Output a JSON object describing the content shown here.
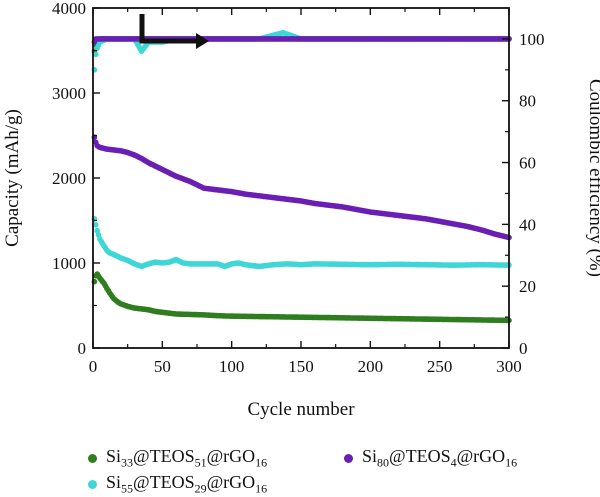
{
  "chart_data": {
    "type": "scatter",
    "xlabel": "Cycle number",
    "ylabel_left": "Capacity (mAh/g)",
    "ylabel_right": "Coulombic efficiency (%)",
    "xlim": [
      0,
      300
    ],
    "ylim_left": [
      0,
      4000
    ],
    "ylim_right": [
      0,
      110
    ],
    "x_ticks": [
      "0",
      "50",
      "100",
      "150",
      "200",
      "250",
      "300"
    ],
    "y_left_ticks": [
      "0",
      "1000",
      "2000",
      "3000",
      "4000"
    ],
    "y_right_ticks": [
      "0",
      "20",
      "40",
      "60",
      "80",
      "100"
    ],
    "grid": false,
    "legend_position": "bottom",
    "series": [
      {
        "name": "Si33@TEOS51@rGO16",
        "color": "#2e7d1e",
        "capacity": [
          [
            1,
            780
          ],
          [
            2,
            850
          ],
          [
            3,
            870
          ],
          [
            5,
            820
          ],
          [
            8,
            760
          ],
          [
            10,
            700
          ],
          [
            12,
            650
          ],
          [
            15,
            580
          ],
          [
            18,
            540
          ],
          [
            20,
            520
          ],
          [
            25,
            490
          ],
          [
            30,
            470
          ],
          [
            35,
            460
          ],
          [
            40,
            450
          ],
          [
            45,
            430
          ],
          [
            50,
            420
          ],
          [
            55,
            410
          ],
          [
            60,
            400
          ],
          [
            70,
            395
          ],
          [
            80,
            390
          ],
          [
            90,
            380
          ],
          [
            100,
            375
          ],
          [
            120,
            370
          ],
          [
            140,
            365
          ],
          [
            160,
            360
          ],
          [
            180,
            355
          ],
          [
            200,
            350
          ],
          [
            220,
            345
          ],
          [
            240,
            340
          ],
          [
            260,
            335
          ],
          [
            280,
            330
          ],
          [
            300,
            325
          ]
        ],
        "efficiency": [
          [
            1,
            96
          ],
          [
            2,
            98
          ],
          [
            3,
            99
          ],
          [
            5,
            100
          ],
          [
            10,
            100
          ],
          [
            20,
            100
          ],
          [
            40,
            100
          ],
          [
            60,
            100
          ],
          [
            80,
            100
          ],
          [
            100,
            100
          ],
          [
            150,
            100
          ],
          [
            200,
            100
          ],
          [
            250,
            100
          ],
          [
            300,
            100
          ]
        ]
      },
      {
        "name": "Si55@TEOS29@rGO16",
        "color": "#3fd6d6",
        "capacity": [
          [
            1,
            1520
          ],
          [
            2,
            1450
          ],
          [
            3,
            1380
          ],
          [
            5,
            1280
          ],
          [
            8,
            1200
          ],
          [
            10,
            1150
          ],
          [
            12,
            1120
          ],
          [
            15,
            1100
          ],
          [
            20,
            1060
          ],
          [
            25,
            1030
          ],
          [
            30,
            990
          ],
          [
            35,
            960
          ],
          [
            40,
            990
          ],
          [
            45,
            1010
          ],
          [
            50,
            1000
          ],
          [
            55,
            1010
          ],
          [
            60,
            1040
          ],
          [
            65,
            1000
          ],
          [
            70,
            990
          ],
          [
            80,
            990
          ],
          [
            90,
            990
          ],
          [
            95,
            960
          ],
          [
            100,
            990
          ],
          [
            105,
            1000
          ],
          [
            110,
            980
          ],
          [
            120,
            960
          ],
          [
            130,
            980
          ],
          [
            140,
            990
          ],
          [
            150,
            980
          ],
          [
            160,
            990
          ],
          [
            180,
            985
          ],
          [
            200,
            980
          ],
          [
            220,
            985
          ],
          [
            240,
            980
          ],
          [
            260,
            975
          ],
          [
            280,
            980
          ],
          [
            300,
            975
          ]
        ],
        "efficiency": [
          [
            1,
            90
          ],
          [
            2,
            95
          ],
          [
            3,
            97
          ],
          [
            5,
            99
          ],
          [
            10,
            100
          ],
          [
            20,
            100
          ],
          [
            30,
            100
          ],
          [
            35,
            96
          ],
          [
            40,
            99
          ],
          [
            50,
            99
          ],
          [
            60,
            100
          ],
          [
            80,
            100
          ],
          [
            100,
            100
          ],
          [
            120,
            100
          ],
          [
            137,
            102
          ],
          [
            150,
            100
          ],
          [
            200,
            100
          ],
          [
            250,
            100
          ],
          [
            300,
            100
          ]
        ]
      },
      {
        "name": "Si80@TEOS4@rGO16",
        "color": "#6a1fb4",
        "capacity": [
          [
            1,
            2480
          ],
          [
            2,
            2420
          ],
          [
            3,
            2380
          ],
          [
            5,
            2360
          ],
          [
            10,
            2340
          ],
          [
            15,
            2330
          ],
          [
            20,
            2320
          ],
          [
            25,
            2300
          ],
          [
            30,
            2270
          ],
          [
            35,
            2230
          ],
          [
            40,
            2180
          ],
          [
            45,
            2140
          ],
          [
            50,
            2100
          ],
          [
            55,
            2060
          ],
          [
            60,
            2020
          ],
          [
            65,
            1990
          ],
          [
            70,
            1960
          ],
          [
            75,
            1920
          ],
          [
            80,
            1880
          ],
          [
            85,
            1870
          ],
          [
            90,
            1860
          ],
          [
            100,
            1840
          ],
          [
            110,
            1810
          ],
          [
            120,
            1790
          ],
          [
            130,
            1770
          ],
          [
            140,
            1750
          ],
          [
            150,
            1730
          ],
          [
            160,
            1700
          ],
          [
            170,
            1680
          ],
          [
            180,
            1660
          ],
          [
            190,
            1630
          ],
          [
            200,
            1600
          ],
          [
            210,
            1580
          ],
          [
            220,
            1560
          ],
          [
            230,
            1540
          ],
          [
            240,
            1520
          ],
          [
            250,
            1490
          ],
          [
            260,
            1460
          ],
          [
            270,
            1430
          ],
          [
            280,
            1390
          ],
          [
            290,
            1340
          ],
          [
            300,
            1300
          ]
        ],
        "efficiency": [
          [
            1,
            99
          ],
          [
            2,
            100
          ],
          [
            3,
            100
          ],
          [
            5,
            100
          ],
          [
            10,
            100
          ],
          [
            20,
            100
          ],
          [
            40,
            100
          ],
          [
            60,
            100
          ],
          [
            80,
            100
          ],
          [
            100,
            100
          ],
          [
            150,
            100
          ],
          [
            200,
            100
          ],
          [
            250,
            100
          ],
          [
            300,
            100
          ]
        ]
      }
    ],
    "legend": [
      {
        "id": "s33",
        "color": "#2e7d1e",
        "base": "Si",
        "sub1": "33",
        "mid1": "@TEOS",
        "sub2": "51",
        "mid2": "@rGO",
        "sub3": "16"
      },
      {
        "id": "s80",
        "color": "#6a1fb4",
        "base": "Si",
        "sub1": "80",
        "mid1": "@TEOS",
        "sub2": "4",
        "mid2": "@rGO",
        "sub3": "16"
      },
      {
        "id": "s55",
        "color": "#3fd6d6",
        "base": "Si",
        "sub1": "55",
        "mid1": "@TEOS",
        "sub2": "29",
        "mid2": "@rGO",
        "sub3": "16"
      }
    ]
  }
}
